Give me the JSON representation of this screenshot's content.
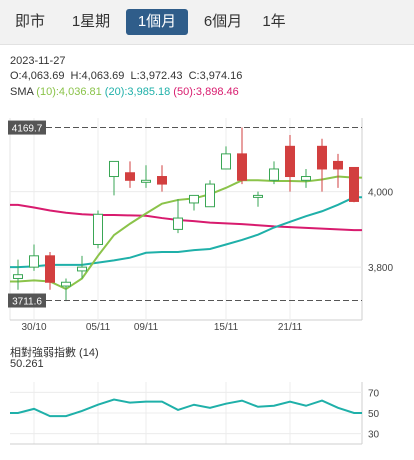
{
  "tabs": [
    {
      "label": "即市",
      "active": false
    },
    {
      "label": "1星期",
      "active": false
    },
    {
      "label": "1個月",
      "active": true
    },
    {
      "label": "6個月",
      "active": false
    },
    {
      "label": "1年",
      "active": false
    }
  ],
  "info": {
    "date": "2023-11-27",
    "ohlc": "O:4,063.69  H:4,063.69  L:3,972.43  C:3,974.16",
    "sma_prefix": "SMA",
    "sma10": "(10):4,036.81",
    "sma20": "(20):3,985.18",
    "sma50": "(50):3,898.46"
  },
  "colors": {
    "up": "#3aa655",
    "down": "#d23f3f",
    "sma10": "#8bc34a",
    "sma20": "#1fb0a9",
    "sma50": "#d81b6e",
    "rsi": "#1fb0a9"
  },
  "chart_data": [
    {
      "type": "candlestick",
      "x": [
        "2023-10-27",
        "2023-10-30",
        "2023-10-31",
        "2023-11-01",
        "2023-11-02",
        "2023-11-03",
        "2023-11-06",
        "2023-11-07",
        "2023-11-08",
        "2023-11-09",
        "2023-11-10",
        "2023-11-13",
        "2023-11-14",
        "2023-11-15",
        "2023-11-16",
        "2023-11-17",
        "2023-11-20",
        "2023-11-21",
        "2023-11-22",
        "2023-11-23",
        "2023-11-24",
        "2023-11-27"
      ],
      "tick_labels": [
        {
          "label": "30/10",
          "index": 1
        },
        {
          "label": "05/11",
          "index": 5
        },
        {
          "label": "09/11",
          "index": 8
        },
        {
          "label": "15/11",
          "index": 13
        },
        {
          "label": "21/11",
          "index": 17
        }
      ],
      "open": [
        3770,
        3800,
        3830,
        3750,
        3790,
        3860,
        4040,
        4050,
        4030,
        4040,
        3900,
        3970,
        3960,
        4060,
        4100,
        3990,
        4030,
        4120,
        4030,
        4120,
        4080,
        4064
      ],
      "high": [
        3820,
        3860,
        3840,
        3770,
        3830,
        3950,
        4080,
        4080,
        4070,
        4070,
        3980,
        3990,
        4030,
        4120,
        4170,
        4000,
        4080,
        4150,
        4060,
        4140,
        4100,
        4064
      ],
      "low": [
        3740,
        3790,
        3740,
        3710,
        3770,
        3850,
        3990,
        4010,
        4010,
        4000,
        3890,
        3950,
        3960,
        4060,
        4020,
        3960,
        4020,
        4000,
        4010,
        4000,
        4010,
        3972
      ],
      "close": [
        3780,
        3830,
        3760,
        3760,
        3800,
        3940,
        4080,
        4030,
        4030,
        4020,
        3930,
        3990,
        4020,
        4100,
        4030,
        3990,
        4060,
        4040,
        4040,
        4060,
        4060,
        3974
      ],
      "sma10": [
        3762,
        3765,
        3762,
        3742,
        3770,
        3830,
        3885,
        3915,
        3942,
        3968,
        3978,
        3982,
        3993,
        4010,
        4030,
        4030,
        4028,
        4028,
        4027,
        4032,
        4040,
        4037
      ],
      "sma20": [
        3800,
        3802,
        3806,
        3806,
        3806,
        3812,
        3818,
        3825,
        3838,
        3840,
        3840,
        3845,
        3848,
        3860,
        3872,
        3886,
        3905,
        3920,
        3935,
        3948,
        3965,
        3985
      ],
      "sma50": [
        3965,
        3958,
        3950,
        3944,
        3940,
        3938,
        3938,
        3937,
        3936,
        3930,
        3925,
        3922,
        3918,
        3916,
        3914,
        3911,
        3908,
        3906,
        3904,
        3902,
        3900,
        3898
      ],
      "y_ticks": [
        4000,
        3800
      ],
      "y_tick_labels": [
        "4,000",
        "3,800"
      ],
      "markers": [
        {
          "label": "4169.7",
          "value": 4169.7
        },
        {
          "label": "3711.6",
          "value": 3711.6
        }
      ],
      "ylim": [
        3660,
        4195
      ]
    },
    {
      "type": "line",
      "title": "相對強弱指數 (14)",
      "current_value": "50.261",
      "values": [
        50,
        54,
        47,
        47,
        52,
        58,
        63,
        60,
        61,
        61,
        53,
        58,
        55,
        59,
        62,
        56,
        57,
        61,
        57,
        62,
        55,
        50
      ],
      "y_ticks": [
        70,
        50,
        30
      ],
      "ylim": [
        20,
        80
      ]
    }
  ]
}
